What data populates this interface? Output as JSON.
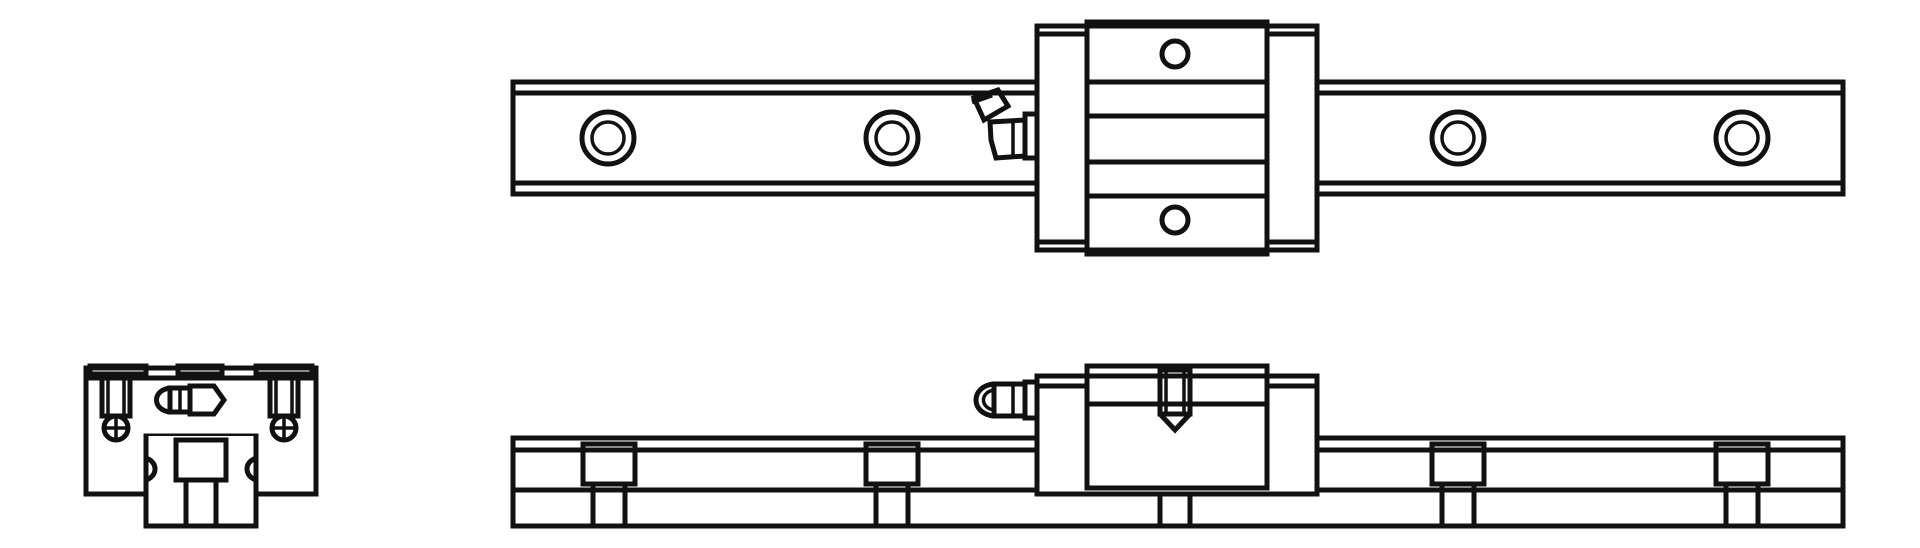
{
  "drawing": {
    "views": [
      {
        "name": "end-view"
      },
      {
        "name": "top-view"
      },
      {
        "name": "side-view"
      }
    ],
    "colors": {
      "line": "#111111",
      "background": "#ffffff"
    }
  }
}
